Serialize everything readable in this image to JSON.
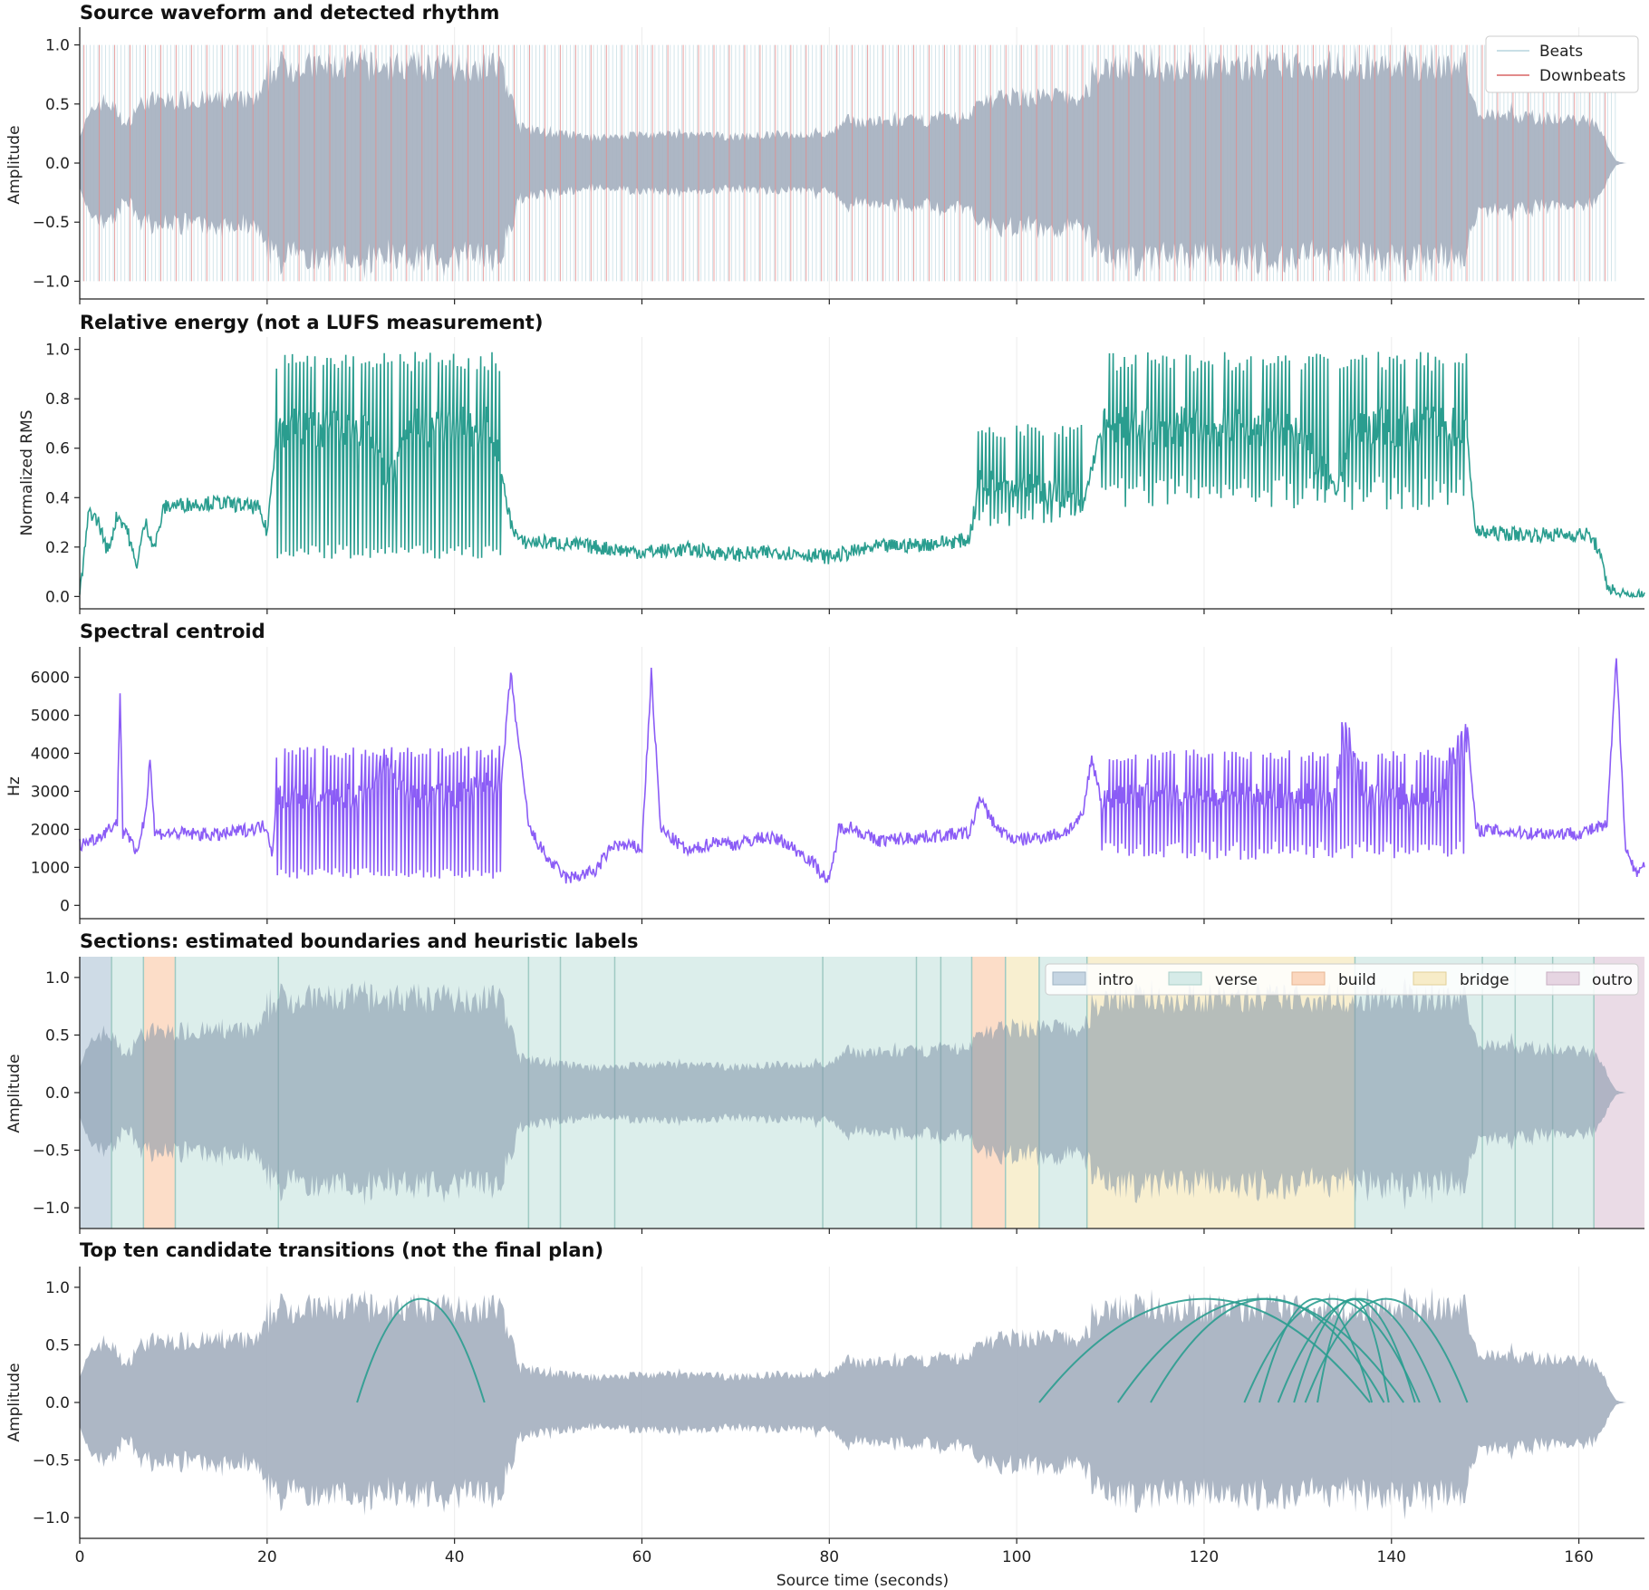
{
  "chart_data": [
    {
      "type": "line",
      "id": "waveform",
      "title": "Source waveform and detected rhythm",
      "ylabel": "Amplitude",
      "xlim": [
        0,
        167
      ],
      "ylim": [
        -1.15,
        1.15
      ],
      "yticks": [
        -1.0,
        -0.5,
        0.0,
        0.5,
        1.0
      ],
      "ytick_labels": [
        "−1.0",
        "−0.5",
        "0.0",
        "0.5",
        "1.0"
      ],
      "grid": "vertical",
      "legend_position": "top-right",
      "legend": [
        "Beats",
        "Downbeats"
      ],
      "series": [
        {
          "name": "waveform envelope",
          "color": "#a9b3c2",
          "x": [
            0,
            1,
            2,
            3,
            4,
            5,
            6,
            7,
            8,
            9,
            10,
            15,
            19,
            21,
            25,
            30,
            35,
            40,
            45,
            47,
            50,
            55,
            60,
            65,
            70,
            75,
            80,
            82,
            85,
            90,
            95,
            96,
            100,
            105,
            107,
            109,
            112,
            120,
            128,
            130,
            136,
            137,
            140,
            145,
            148,
            149,
            155,
            161,
            162,
            163,
            164,
            165
          ],
          "envelope": [
            0.3,
            0.45,
            0.6,
            0.6,
            0.5,
            0.35,
            0.55,
            0.6,
            0.62,
            0.6,
            0.62,
            0.62,
            0.62,
            0.95,
            0.95,
            0.95,
            0.95,
            0.95,
            0.95,
            0.35,
            0.3,
            0.25,
            0.28,
            0.28,
            0.26,
            0.28,
            0.28,
            0.42,
            0.4,
            0.42,
            0.45,
            0.62,
            0.65,
            0.65,
            0.62,
            0.95,
            0.95,
            0.95,
            0.95,
            0.95,
            0.95,
            0.95,
            0.95,
            0.95,
            0.95,
            0.5,
            0.45,
            0.42,
            0.35,
            0.2,
            0.02,
            0.0
          ]
        },
        {
          "name": "Beats",
          "color": "#c9dfe6",
          "interval": 0.41,
          "start": 0.3,
          "end": 164
        },
        {
          "name": "Downbeats",
          "color": "#e28b8b",
          "interval": 1.64,
          "start": 0.45,
          "end": 164
        }
      ]
    },
    {
      "type": "line",
      "id": "energy",
      "title": "Relative energy (not a LUFS measurement)",
      "ylabel": "Normalized RMS",
      "xlim": [
        0,
        167
      ],
      "ylim": [
        -0.05,
        1.05
      ],
      "yticks": [
        0.0,
        0.2,
        0.4,
        0.6,
        0.8,
        1.0
      ],
      "ytick_labels": [
        "0.0",
        "0.2",
        "0.4",
        "0.6",
        "0.8",
        "1.0"
      ],
      "color": "#2a9d8f",
      "x": [
        0,
        1,
        2,
        3,
        4,
        5,
        6,
        7,
        8,
        9,
        10,
        15,
        19,
        20,
        21,
        25,
        30,
        33,
        35,
        40,
        44,
        46,
        47,
        50,
        55,
        60,
        65,
        70,
        75,
        80,
        85,
        90,
        95,
        96,
        100,
        105,
        107,
        108,
        109,
        112,
        120,
        128,
        130,
        134,
        136,
        140,
        148,
        149,
        155,
        161,
        162,
        163,
        164,
        165,
        167
      ],
      "y": [
        0.0,
        0.35,
        0.3,
        0.18,
        0.33,
        0.28,
        0.12,
        0.3,
        0.2,
        0.36,
        0.37,
        0.38,
        0.36,
        0.26,
        0.67,
        0.67,
        0.67,
        0.45,
        0.67,
        0.67,
        0.67,
        0.3,
        0.22,
        0.22,
        0.2,
        0.18,
        0.19,
        0.17,
        0.18,
        0.16,
        0.2,
        0.21,
        0.23,
        0.45,
        0.45,
        0.4,
        0.35,
        0.52,
        0.67,
        0.67,
        0.67,
        0.67,
        0.67,
        0.4,
        0.67,
        0.67,
        0.67,
        0.26,
        0.25,
        0.25,
        0.2,
        0.05,
        0.01,
        0.0,
        0.0
      ],
      "pulse": [
        {
          "from": 21,
          "to": 45,
          "lo": 0.15,
          "hi": 0.99
        },
        {
          "from": 95,
          "to": 107,
          "lo": 0.28,
          "hi": 0.7
        },
        {
          "from": 109,
          "to": 148,
          "lo": 0.35,
          "hi": 0.99
        }
      ]
    },
    {
      "type": "line",
      "id": "centroid",
      "title": "Spectral centroid",
      "ylabel": "Hz",
      "xlim": [
        0,
        167
      ],
      "ylim": [
        -350,
        6800
      ],
      "yticks": [
        0,
        1000,
        2000,
        3000,
        4000,
        5000,
        6000
      ],
      "ytick_labels": [
        "0",
        "1000",
        "2000",
        "3000",
        "4000",
        "5000",
        "6000"
      ],
      "color": "#8b5cf6",
      "x": [
        0,
        2,
        4,
        4.3,
        4.6,
        5,
        6,
        7,
        7.5,
        8,
        10,
        15,
        20,
        20.5,
        21,
        25,
        30,
        33,
        35,
        40,
        45,
        46,
        47,
        48,
        50,
        52,
        55,
        57,
        60,
        61,
        62,
        65,
        68,
        70,
        73,
        75,
        78,
        80,
        81,
        82,
        85,
        90,
        95,
        96,
        98,
        100,
        105,
        107,
        108,
        109,
        115,
        120,
        125,
        128,
        131,
        134,
        135,
        137,
        145,
        148,
        149,
        155,
        160,
        163,
        164,
        165,
        166,
        167
      ],
      "y": [
        1600,
        1800,
        2200,
        5700,
        1900,
        2000,
        1300,
        2400,
        3900,
        1900,
        1900,
        1850,
        2100,
        1300,
        2800,
        2800,
        2800,
        3700,
        2800,
        2800,
        3200,
        6100,
        3900,
        2000,
        1200,
        700,
        900,
        1600,
        1500,
        6100,
        2000,
        1400,
        1700,
        1600,
        1800,
        1700,
        1200,
        600,
        2000,
        2100,
        1700,
        1800,
        1900,
        2800,
        2000,
        1700,
        1900,
        2300,
        3900,
        2800,
        2800,
        2800,
        2800,
        2800,
        2800,
        2800,
        4900,
        2800,
        2800,
        4900,
        2000,
        1900,
        1900,
        2100,
        6500,
        1500,
        900,
        1000
      ],
      "pulse": [
        {
          "from": 21,
          "to": 45,
          "lo": 700,
          "hi": 4200
        },
        {
          "from": 109,
          "to": 148,
          "lo": 1200,
          "hi": 4100
        }
      ]
    },
    {
      "type": "area",
      "id": "sections",
      "title": "Sections: estimated boundaries and heuristic labels",
      "ylabel": "Amplitude",
      "xlim": [
        0,
        167
      ],
      "ylim": [
        -1.18,
        1.18
      ],
      "yticks": [
        -1.0,
        -0.5,
        0.0,
        0.5,
        1.0
      ],
      "ytick_labels": [
        "−1.0",
        "−0.5",
        "0.0",
        "0.5",
        "1.0"
      ],
      "legend_position": "top-right",
      "legend": [
        "intro",
        "verse",
        "build",
        "bridge",
        "outro"
      ],
      "label_colors": {
        "intro": "#c5d5e2",
        "verse": "#d6ebe8",
        "build": "#fbd7be",
        "bridge": "#f7ecc8",
        "outro": "#e6d5e2"
      },
      "sections": [
        {
          "label": "intro",
          "start": 0,
          "end": 3.4
        },
        {
          "label": "verse",
          "start": 3.4,
          "end": 6.8
        },
        {
          "label": "build",
          "start": 6.8,
          "end": 10.2
        },
        {
          "label": "verse",
          "start": 10.2,
          "end": 95.2
        },
        {
          "label": "build",
          "start": 95.2,
          "end": 98.8
        },
        {
          "label": "bridge",
          "start": 98.8,
          "end": 102.4
        },
        {
          "label": "verse",
          "start": 102.4,
          "end": 107.5
        },
        {
          "label": "bridge",
          "start": 107.5,
          "end": 136.1
        },
        {
          "label": "verse",
          "start": 136.1,
          "end": 161.6
        },
        {
          "label": "outro",
          "start": 161.6,
          "end": 167
        }
      ],
      "boundaries": [
        21.2,
        47.9,
        51.3,
        57.1,
        79.3,
        89.3,
        91.9,
        149.7,
        153.2,
        157.2
      ]
    },
    {
      "type": "line",
      "id": "transitions",
      "title": "Top ten candidate transitions (not the final plan)",
      "xlabel": "Source time (seconds)",
      "ylabel": "Amplitude",
      "xlim": [
        0,
        167
      ],
      "ylim": [
        -1.18,
        1.18
      ],
      "yticks": [
        -1.0,
        -0.5,
        0.0,
        0.5,
        1.0
      ],
      "ytick_labels": [
        "−1.0",
        "−0.5",
        "0.0",
        "0.5",
        "1.0"
      ],
      "xticks": [
        0,
        20,
        40,
        60,
        80,
        100,
        120,
        140,
        160
      ],
      "xtick_labels": [
        "0",
        "20",
        "40",
        "60",
        "80",
        "100",
        "120",
        "140",
        "160"
      ],
      "arc_color": "#2a9d8f",
      "arc_peak": 0.9,
      "arcs": [
        [
          29.6,
          43.2
        ],
        [
          102.4,
          137.7
        ],
        [
          110.8,
          141.3
        ],
        [
          114.3,
          139.2
        ],
        [
          124.3,
          143.0
        ],
        [
          125.9,
          137.9
        ],
        [
          127.9,
          145.2
        ],
        [
          129.6,
          142.5
        ],
        [
          130.8,
          148.1
        ],
        [
          132.1,
          139.7
        ]
      ]
    }
  ]
}
